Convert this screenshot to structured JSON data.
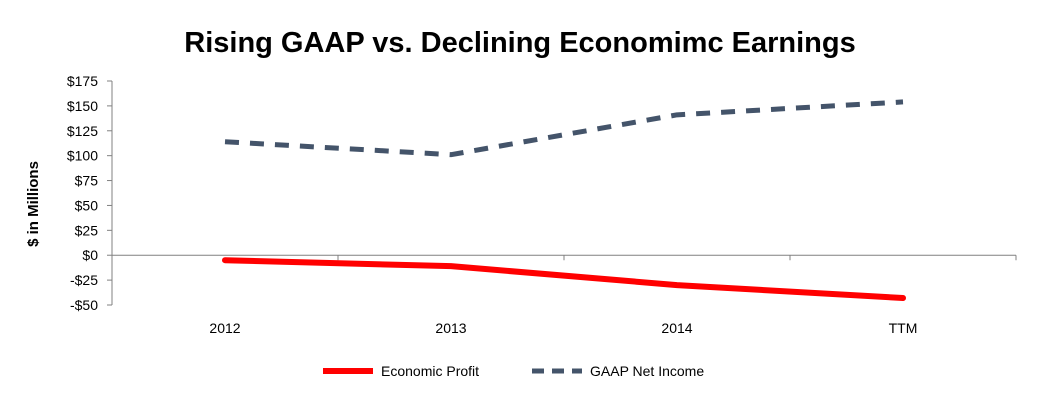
{
  "chart_data": {
    "type": "line",
    "title": "Rising GAAP vs. Declining Economimc Earnings",
    "xlabel": "",
    "ylabel": "$ in Millions",
    "categories": [
      "2012",
      "2013",
      "2014",
      "TTM"
    ],
    "ylim": [
      -50,
      175
    ],
    "yticks": [
      -50,
      -25,
      0,
      25,
      50,
      75,
      100,
      125,
      150,
      175
    ],
    "ytick_labels": [
      "-$50",
      "-$25",
      "$0",
      "$25",
      "$50",
      "$75",
      "$100",
      "$125",
      "$150",
      "$175"
    ],
    "grid": false,
    "legend_position": "bottom",
    "series": [
      {
        "name": "Economic Profit",
        "values": [
          -5,
          -11,
          -30,
          -43
        ],
        "color": "#ff0000",
        "style": "solid"
      },
      {
        "name": "GAAP Net Income",
        "values": [
          114,
          101,
          141,
          154
        ],
        "color": "#44546a",
        "style": "dashed"
      }
    ]
  }
}
